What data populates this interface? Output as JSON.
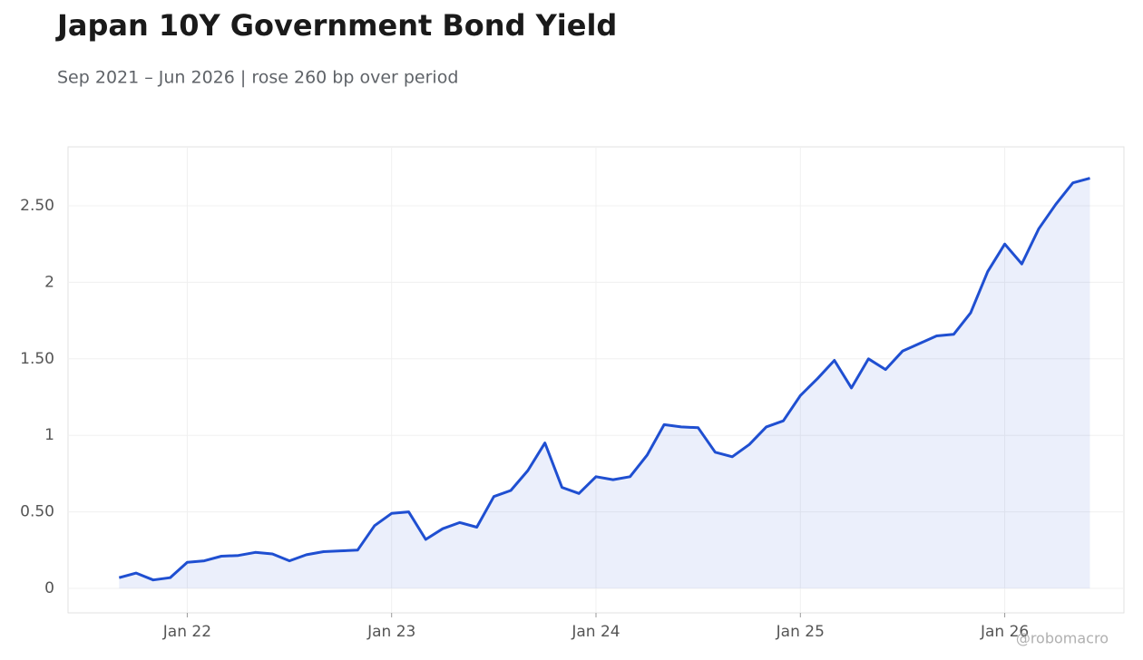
{
  "chart_data": {
    "type": "line",
    "title": "Japan 10Y Government Bond Yield",
    "subtitle": "Sep 2021 – Jun 2026 | rose 260 bp over period",
    "watermark": "@robomacro",
    "color": "#1f4fd1",
    "area": true,
    "grid": true,
    "x": [
      "2021-09",
      "2021-10",
      "2021-11",
      "2021-12",
      "2022-01",
      "2022-02",
      "2022-03",
      "2022-04",
      "2022-05",
      "2022-06",
      "2022-07",
      "2022-08",
      "2022-09",
      "2022-10",
      "2022-11",
      "2022-12",
      "2023-01",
      "2023-02",
      "2023-03",
      "2023-04",
      "2023-05",
      "2023-06",
      "2023-07",
      "2023-08",
      "2023-09",
      "2023-10",
      "2023-11",
      "2023-12",
      "2024-01",
      "2024-02",
      "2024-03",
      "2024-04",
      "2024-05",
      "2024-06",
      "2024-07",
      "2024-08",
      "2024-09",
      "2024-10",
      "2024-11",
      "2024-12",
      "2025-01",
      "2025-02",
      "2025-03",
      "2025-04",
      "2025-05",
      "2025-06",
      "2025-07",
      "2025-08",
      "2025-09",
      "2025-10",
      "2025-11",
      "2025-12",
      "2026-01",
      "2026-02",
      "2026-03",
      "2026-04",
      "2026-05",
      "2026-06"
    ],
    "values": [
      0.07,
      0.1,
      0.055,
      0.07,
      0.17,
      0.18,
      0.21,
      0.215,
      0.235,
      0.225,
      0.18,
      0.22,
      0.24,
      0.245,
      0.25,
      0.41,
      0.49,
      0.5,
      0.32,
      0.39,
      0.43,
      0.4,
      0.6,
      0.64,
      0.77,
      0.95,
      0.66,
      0.62,
      0.73,
      0.71,
      0.73,
      0.87,
      1.07,
      1.055,
      1.05,
      0.89,
      0.86,
      0.94,
      1.055,
      1.095,
      1.26,
      1.37,
      1.49,
      1.31,
      1.5,
      1.43,
      1.55,
      1.6,
      1.65,
      1.66,
      1.8,
      2.07,
      2.25,
      2.12,
      2.35,
      2.51,
      2.65,
      2.68
    ],
    "xlim": [
      "2021-06",
      "2026-08"
    ],
    "xticks": [
      {
        "value": "2022-01",
        "label": "Jan 22"
      },
      {
        "value": "2023-01",
        "label": "Jan 23"
      },
      {
        "value": "2024-01",
        "label": "Jan 24"
      },
      {
        "value": "2025-01",
        "label": "Jan 25"
      },
      {
        "value": "2026-01",
        "label": "Jan 26"
      }
    ],
    "ylim": [
      -0.16,
      2.885
    ],
    "yticks": [
      0,
      {
        "value": 0.5,
        "label": "0.50"
      },
      1,
      {
        "value": 1.5,
        "label": "1.50"
      },
      2,
      {
        "value": 2.5,
        "label": "2.50"
      }
    ]
  }
}
